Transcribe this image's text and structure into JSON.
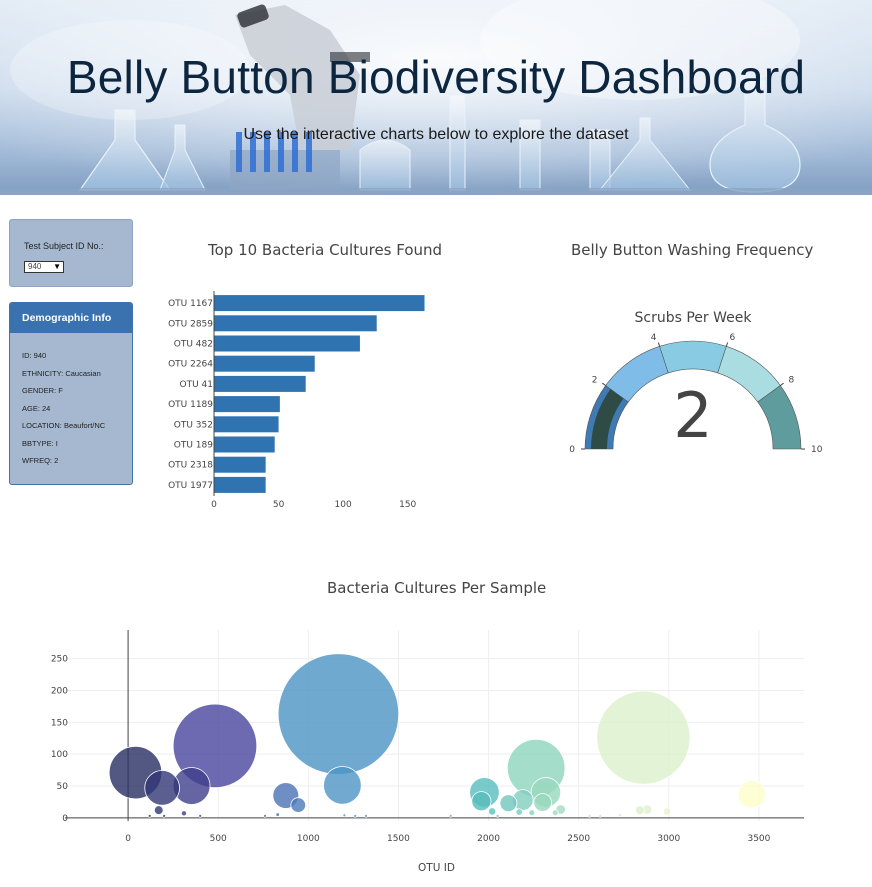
{
  "header": {
    "title": "Belly Button Biodiversity Dashboard",
    "subtitle": "Use the interactive charts below to explore the dataset"
  },
  "selector": {
    "label": "Test Subject ID No.:",
    "value": "940"
  },
  "demographics": {
    "title": "Demographic Info",
    "items": [
      "ID: 940",
      "ETHNICITY: Caucasian",
      "GENDER: F",
      "AGE: 24",
      "LOCATION: Beaufort/NC",
      "BBTYPE: I",
      "WFREQ: 2"
    ]
  },
  "colors": {
    "bar": "#2f73b0",
    "panel": "#a6b8d0",
    "panel_header": "#3a72b0"
  },
  "chart_data": [
    {
      "type": "bar",
      "orientation": "horizontal",
      "title": "Top 10 Bacteria Cultures Found",
      "categories": [
        "OTU 1167",
        "OTU 2859",
        "OTU 482",
        "OTU 2264",
        "OTU 41",
        "OTU 1189",
        "OTU 352",
        "OTU 189",
        "OTU 2318",
        "OTU 1977"
      ],
      "values": [
        163,
        126,
        113,
        78,
        71,
        51,
        50,
        47,
        40,
        40
      ],
      "xlim": [
        0,
        175
      ],
      "xticks": [
        0,
        50,
        100,
        150
      ]
    },
    {
      "type": "gauge",
      "title": "Belly Button Washing Frequency",
      "subtitle": "Scrubs Per Week",
      "value": 2,
      "range": [
        0,
        10
      ],
      "ticks": [
        0,
        2,
        4,
        6,
        8,
        10
      ],
      "steps": [
        {
          "from": 0,
          "to": 2,
          "color": "#3f7ab5"
        },
        {
          "from": 2,
          "to": 4,
          "color": "#7fbde8"
        },
        {
          "from": 4,
          "to": 6,
          "color": "#88cbe3"
        },
        {
          "from": 6,
          "to": 8,
          "color": "#a9dde2"
        },
        {
          "from": 8,
          "to": 10,
          "color": "#5f9c9d"
        }
      ],
      "bar_color": "#2f4b45"
    },
    {
      "type": "scatter",
      "title": "Bacteria Cultures Per Sample",
      "xlabel": "OTU ID",
      "ylabel": "",
      "xlim": [
        -350,
        3750
      ],
      "ylim": [
        -5,
        295
      ],
      "xticks": [
        0,
        500,
        1000,
        1500,
        2000,
        2500,
        3000,
        3500
      ],
      "yticks": [
        0,
        50,
        100,
        150,
        200,
        250
      ],
      "grid": true,
      "points": [
        {
          "x": 41,
          "y": 71
        },
        {
          "x": 189,
          "y": 47
        },
        {
          "x": 352,
          "y": 50
        },
        {
          "x": 482,
          "y": 113
        },
        {
          "x": 1167,
          "y": 163
        },
        {
          "x": 1189,
          "y": 51
        },
        {
          "x": 2264,
          "y": 78
        },
        {
          "x": 2859,
          "y": 126
        },
        {
          "x": 2318,
          "y": 40
        },
        {
          "x": 1977,
          "y": 40
        },
        {
          "x": 875,
          "y": 35
        },
        {
          "x": 944,
          "y": 20
        },
        {
          "x": 1960,
          "y": 26
        },
        {
          "x": 2110,
          "y": 23
        },
        {
          "x": 2190,
          "y": 28
        },
        {
          "x": 2300,
          "y": 24
        },
        {
          "x": 3460,
          "y": 37
        },
        {
          "x": 2020,
          "y": 10
        },
        {
          "x": 2400,
          "y": 13
        },
        {
          "x": 2370,
          "y": 8
        },
        {
          "x": 2170,
          "y": 9
        },
        {
          "x": 2240,
          "y": 8
        },
        {
          "x": 2880,
          "y": 13
        },
        {
          "x": 2840,
          "y": 12
        },
        {
          "x": 2990,
          "y": 10
        },
        {
          "x": 170,
          "y": 12
        },
        {
          "x": 310,
          "y": 7
        },
        {
          "x": 830,
          "y": 5
        },
        {
          "x": 1200,
          "y": 4
        },
        {
          "x": 1790,
          "y": 3
        },
        {
          "x": 1260,
          "y": 3
        },
        {
          "x": 1320,
          "y": 3
        },
        {
          "x": 2050,
          "y": 3
        },
        {
          "x": 2560,
          "y": 3
        },
        {
          "x": 2730,
          "y": 4
        },
        {
          "x": 2620,
          "y": 3
        },
        {
          "x": 760,
          "y": 3
        },
        {
          "x": 120,
          "y": 3
        },
        {
          "x": 200,
          "y": 3
        },
        {
          "x": 400,
          "y": 3
        }
      ]
    }
  ]
}
